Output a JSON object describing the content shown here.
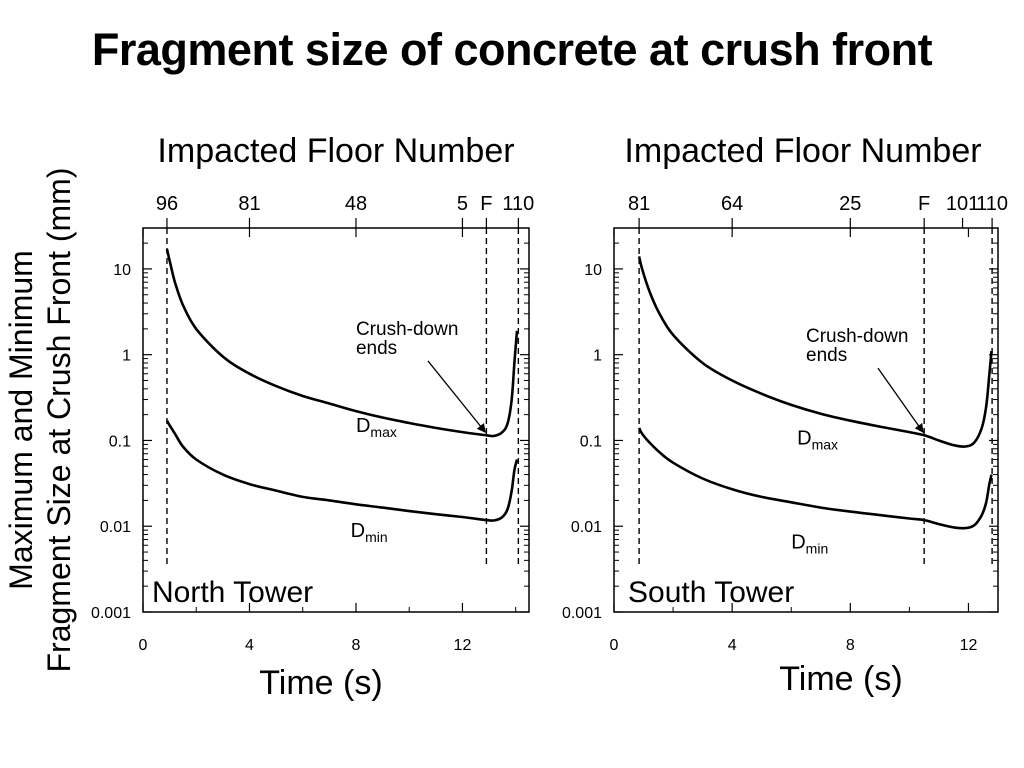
{
  "title": "Fragment size of concrete at crush front",
  "y_axis_label_lines": [
    "Maximum and Minimum",
    "Fragment Size at Crush Front (mm)"
  ],
  "chart_data": [
    {
      "type": "line",
      "panel": "North Tower",
      "xlabel": "Time (s)",
      "top_axis_label": "Impacted Floor Number",
      "ylabel": "Maximum and Minimum Fragment Size at Crush Front (mm)",
      "y_scale": "log",
      "xlim": [
        0,
        14.5
      ],
      "ylim": [
        0.001,
        30
      ],
      "x_ticks": [
        0,
        4,
        8,
        12
      ],
      "y_ticks": [
        0.001,
        0.01,
        0.1,
        1,
        10
      ],
      "y_tick_labels": [
        "0.001",
        "0.01",
        "0.1",
        "1",
        "10"
      ],
      "top_ticks": [
        {
          "x": 0.9,
          "label": "96"
        },
        {
          "x": 4.0,
          "label": "81"
        },
        {
          "x": 8.0,
          "label": "48"
        },
        {
          "x": 12.0,
          "label": "5"
        },
        {
          "x": 12.9,
          "label": "F"
        },
        {
          "x": 14.1,
          "label": "110"
        }
      ],
      "vlines": [
        0.9,
        12.9,
        14.1
      ],
      "series": [
        {
          "name": "Dmax",
          "x": [
            0.9,
            1.0,
            1.2,
            1.5,
            2.0,
            3.0,
            4.0,
            5.0,
            6.0,
            7.0,
            8.0,
            9.0,
            10.0,
            11.0,
            12.0,
            12.9,
            13.2,
            13.5,
            13.7,
            13.85,
            13.95,
            14.05
          ],
          "y": [
            17,
            12.5,
            7,
            3.8,
            2.0,
            0.95,
            0.6,
            0.43,
            0.33,
            0.27,
            0.22,
            0.185,
            0.16,
            0.14,
            0.125,
            0.115,
            0.113,
            0.125,
            0.16,
            0.3,
            0.8,
            1.9
          ]
        },
        {
          "name": "Dmin",
          "x": [
            0.9,
            1.0,
            1.2,
            1.5,
            2.0,
            3.0,
            4.0,
            5.0,
            6.0,
            7.0,
            8.0,
            9.0,
            10.0,
            11.0,
            12.0,
            12.9,
            13.2,
            13.5,
            13.7,
            13.85,
            13.95,
            14.05
          ],
          "y": [
            0.17,
            0.15,
            0.12,
            0.085,
            0.06,
            0.04,
            0.031,
            0.026,
            0.022,
            0.02,
            0.018,
            0.0165,
            0.015,
            0.0138,
            0.0128,
            0.0118,
            0.0117,
            0.0128,
            0.016,
            0.026,
            0.045,
            0.06
          ]
        }
      ],
      "series_labels": [
        {
          "series": "Dmax",
          "text": "D",
          "sub": "max",
          "x": 8.0,
          "y": 0.125
        },
        {
          "series": "Dmin",
          "text": "D",
          "sub": "min",
          "x": 7.8,
          "y": 0.0075
        }
      ],
      "annotation": {
        "lines": [
          "Crush-down",
          "ends"
        ],
        "x": 8.0,
        "y": 1.7,
        "arrow_to": [
          12.9,
          0.115
        ]
      }
    },
    {
      "type": "line",
      "panel": "South Tower",
      "xlabel": "Time (s)",
      "top_axis_label": "Impacted Floor Number",
      "ylabel": "Maximum and Minimum Fragment Size at Crush Front (mm)",
      "y_scale": "log",
      "xlim": [
        0,
        13
      ],
      "ylim": [
        0.001,
        30
      ],
      "x_ticks": [
        0,
        4,
        8,
        12
      ],
      "y_ticks": [
        0.001,
        0.01,
        0.1,
        1,
        10
      ],
      "y_tick_labels": [
        "0.001",
        "0.01",
        "0.1",
        "1",
        "10"
      ],
      "top_ticks": [
        {
          "x": 0.85,
          "label": "81"
        },
        {
          "x": 4.0,
          "label": "64"
        },
        {
          "x": 8.0,
          "label": "25"
        },
        {
          "x": 10.5,
          "label": "F"
        },
        {
          "x": 11.8,
          "label": "101"
        },
        {
          "x": 12.8,
          "label": "110"
        }
      ],
      "vlines": [
        0.85,
        10.5,
        12.8
      ],
      "series": [
        {
          "name": "Dmax",
          "x": [
            0.85,
            0.95,
            1.2,
            1.5,
            2.0,
            3.0,
            4.0,
            5.0,
            6.0,
            7.0,
            8.0,
            9.0,
            10.0,
            10.5,
            11.0,
            11.5,
            11.9,
            12.2,
            12.45,
            12.6,
            12.7,
            12.78
          ],
          "y": [
            14,
            10,
            5.5,
            3.2,
            1.7,
            0.8,
            0.5,
            0.35,
            0.26,
            0.205,
            0.17,
            0.145,
            0.125,
            0.115,
            0.1,
            0.088,
            0.085,
            0.095,
            0.14,
            0.25,
            0.55,
            1.1
          ]
        },
        {
          "name": "Dmin",
          "x": [
            0.85,
            0.95,
            1.2,
            1.5,
            2.0,
            3.0,
            4.0,
            5.0,
            6.0,
            7.0,
            8.0,
            9.0,
            10.0,
            10.5,
            11.0,
            11.5,
            11.9,
            12.2,
            12.45,
            12.6,
            12.7,
            12.78
          ],
          "y": [
            0.14,
            0.12,
            0.095,
            0.075,
            0.055,
            0.036,
            0.027,
            0.022,
            0.019,
            0.0165,
            0.0148,
            0.0135,
            0.0123,
            0.0118,
            0.0106,
            0.0097,
            0.0095,
            0.0103,
            0.0135,
            0.019,
            0.03,
            0.04
          ]
        }
      ],
      "series_labels": [
        {
          "series": "Dmax",
          "text": "D",
          "sub": "max",
          "x": 6.2,
          "y": 0.09
        },
        {
          "series": "Dmin",
          "text": "D",
          "sub": "min",
          "x": 6.0,
          "y": 0.0055
        }
      ],
      "annotation": {
        "lines": [
          "Crush-down",
          "ends"
        ],
        "x": 6.5,
        "y": 1.4,
        "arrow_to": [
          10.5,
          0.115
        ]
      }
    }
  ]
}
